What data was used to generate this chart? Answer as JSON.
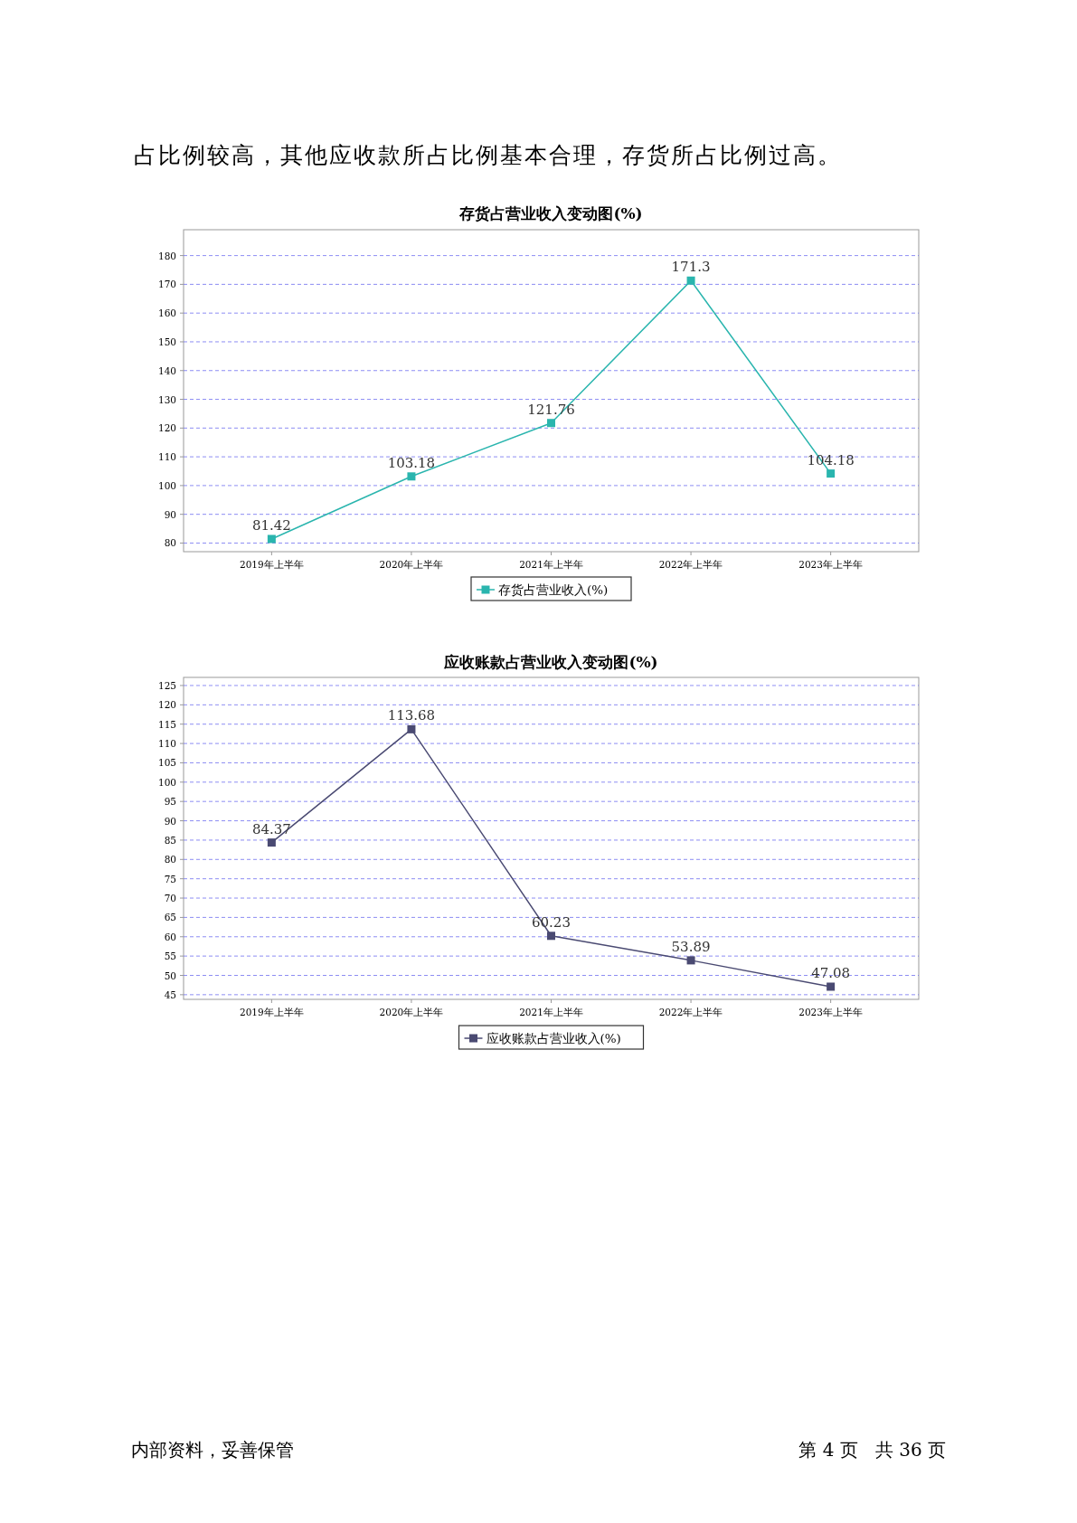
{
  "chart_data": [
    {
      "type": "line",
      "title": "存货占营业收入变动图(%)",
      "categories": [
        "2019年上半年",
        "2020年上半年",
        "2021年上半年",
        "2022年上半年",
        "2023年上半年"
      ],
      "series": [
        {
          "name": "存货占营业收入(%)",
          "color": "#2ab5ae",
          "values": [
            81.42,
            103.18,
            121.76,
            171.3,
            104.18
          ]
        }
      ],
      "ylim": [
        77,
        189
      ],
      "yticks": [
        80,
        90,
        100,
        110,
        120,
        130,
        140,
        150,
        160,
        170,
        180
      ],
      "grid": "y",
      "legend": "bottom",
      "marker": "square",
      "line_style": "solid",
      "data_labels": true,
      "annotations": [
        "占比例较高，其他应收款所占比例基本合理，存货所占比例过高。"
      ]
    },
    {
      "type": "line",
      "title": "应收账款占营业收入变动图(%)",
      "categories": [
        "2019年上半年",
        "2020年上半年",
        "2021年上半年",
        "2022年上半年",
        "2023年上半年"
      ],
      "series": [
        {
          "name": "应收账款占营业收入(%)",
          "color": "#4a4a72",
          "values": [
            84.37,
            113.68,
            60.23,
            53.89,
            47.08
          ]
        }
      ],
      "ylim": [
        43.8,
        127.1
      ],
      "yticks": [
        45,
        50,
        55,
        60,
        65,
        70,
        75,
        80,
        85,
        90,
        95,
        100,
        105,
        110,
        115,
        120,
        125
      ],
      "grid": "y",
      "legend": "bottom",
      "marker": "square",
      "line_style": "solid",
      "data_labels": true,
      "annotations": [
        "内部资料，妥善保管",
        "第 4 页   共 36 页"
      ]
    }
  ]
}
